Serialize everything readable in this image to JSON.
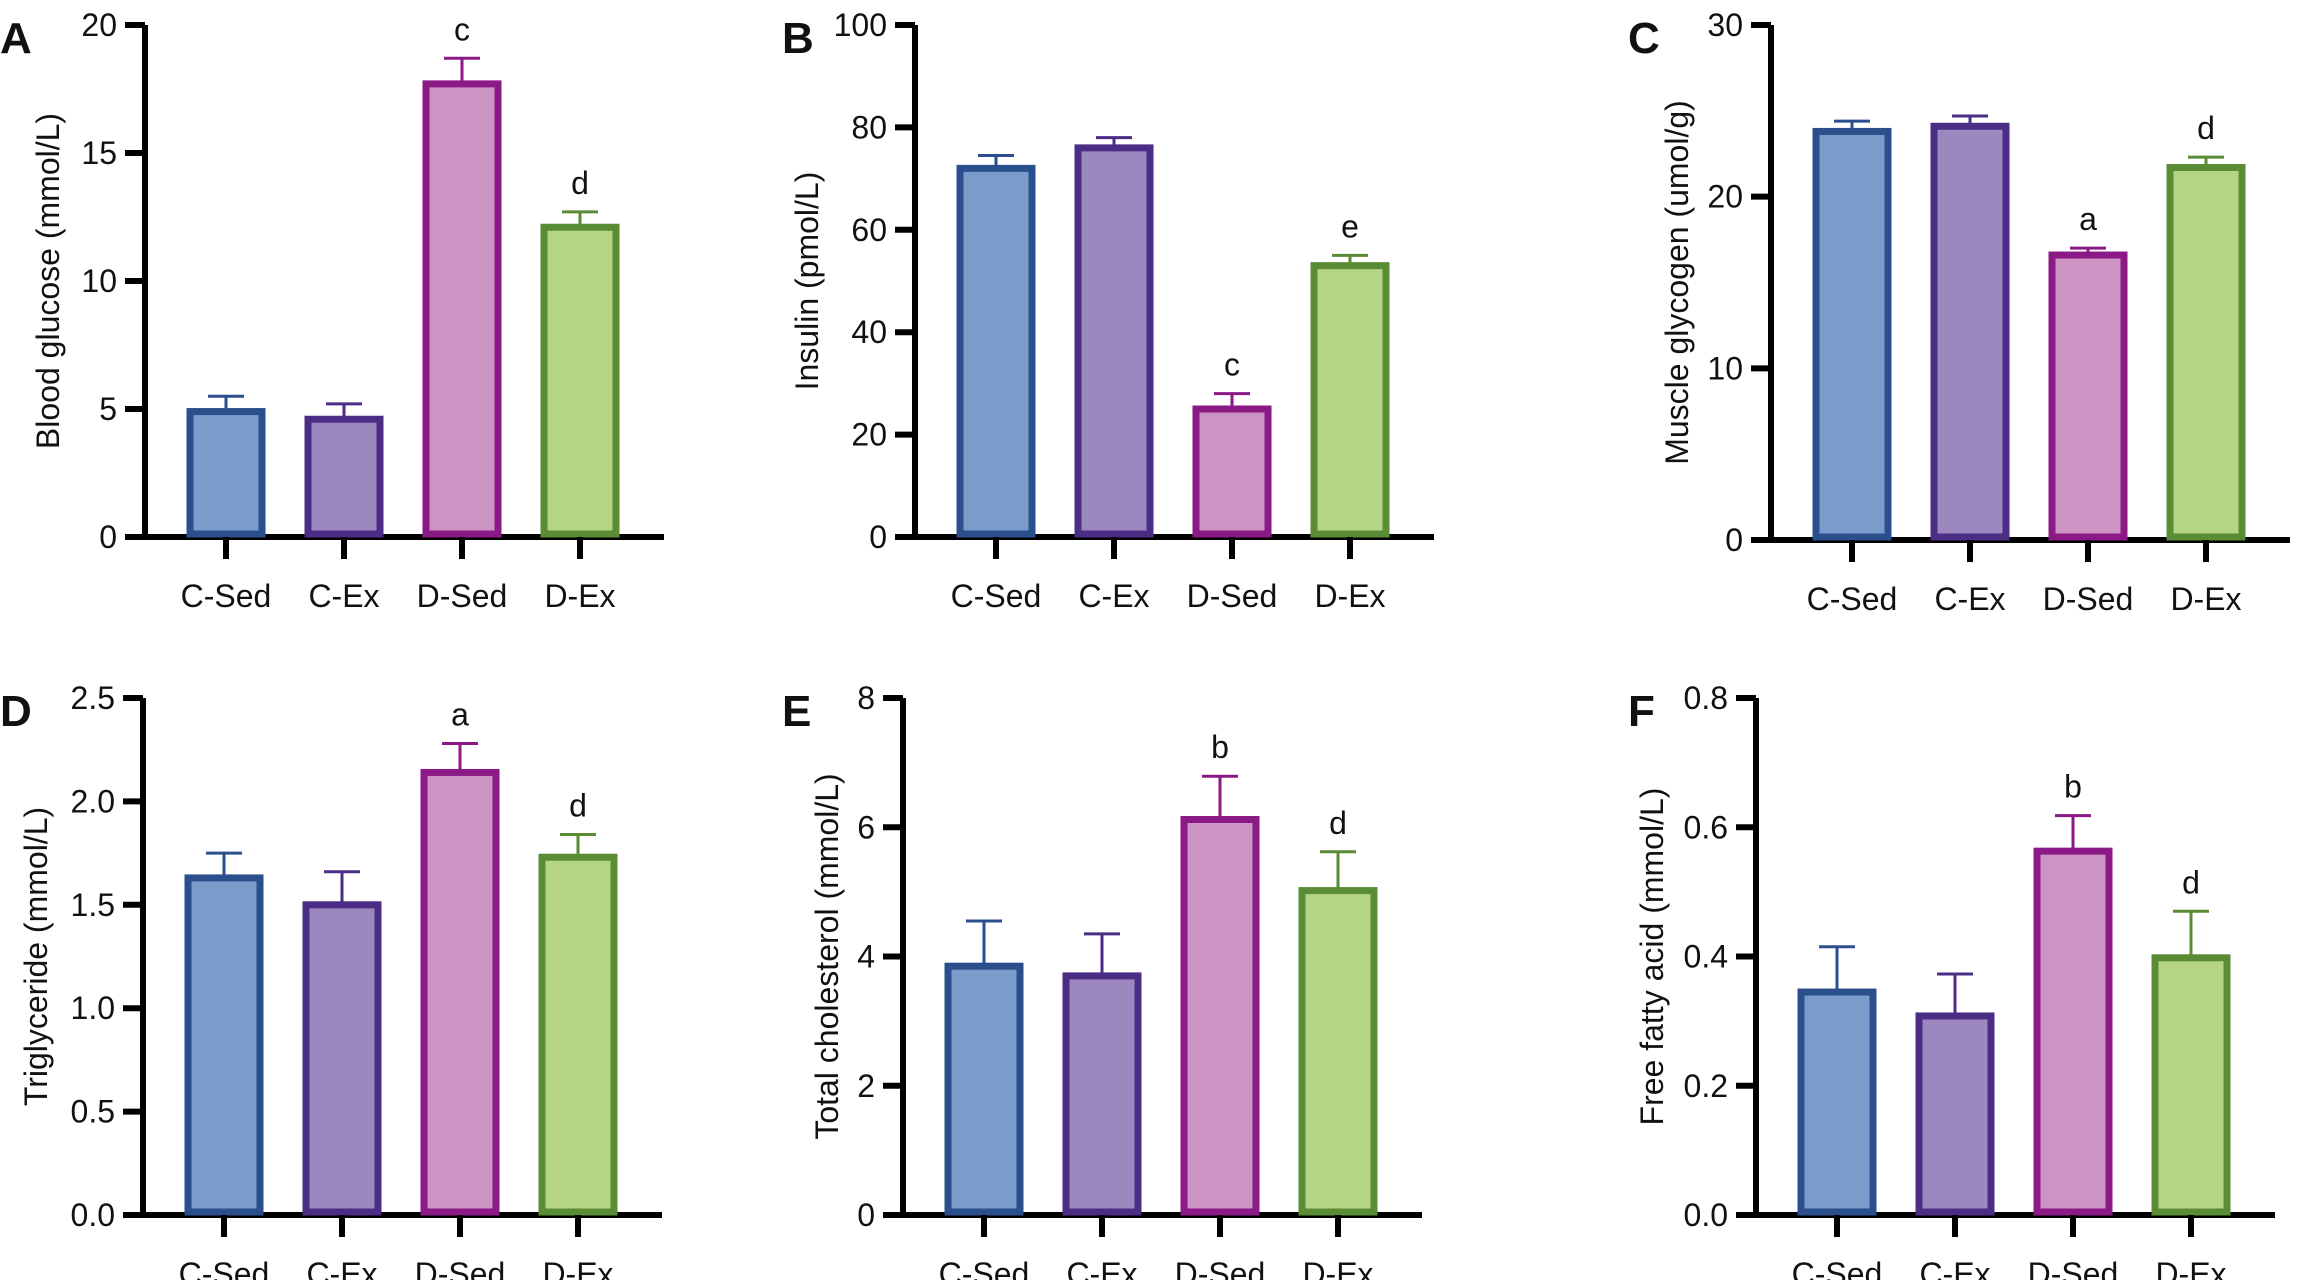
{
  "chart_data": [
    {
      "panel": "A",
      "type": "bar",
      "categories": [
        "C-Sed",
        "C-Ex",
        "D-Sed",
        "D-Ex"
      ],
      "values": [
        4.9,
        4.6,
        17.7,
        12.1
      ],
      "errors": [
        0.6,
        0.6,
        1.0,
        0.6
      ],
      "annotations": [
        "",
        "",
        "c",
        "d"
      ],
      "ylabel": "Blood glucose (mmol/L)",
      "ylim": [
        0,
        20
      ],
      "yticks": [
        "0",
        "5",
        "10",
        "15",
        "20"
      ]
    },
    {
      "panel": "B",
      "type": "bar",
      "categories": [
        "C-Sed",
        "C-Ex",
        "D-Sed",
        "D-Ex"
      ],
      "values": [
        72,
        76,
        25,
        53
      ],
      "errors": [
        2.5,
        2,
        3,
        2
      ],
      "annotations": [
        "",
        "",
        "c",
        "e"
      ],
      "ylabel": "Insulin (pmol/L)",
      "ylim": [
        0,
        100
      ],
      "yticks": [
        "0",
        "20",
        "40",
        "60",
        "80",
        "100"
      ]
    },
    {
      "panel": "C",
      "type": "bar",
      "categories": [
        "C-Sed",
        "C-Ex",
        "D-Sed",
        "D-Ex"
      ],
      "values": [
        23.8,
        24.1,
        16.6,
        21.7
      ],
      "errors": [
        0.6,
        0.6,
        0.4,
        0.6
      ],
      "annotations": [
        "",
        "",
        "a",
        "d"
      ],
      "ylabel": "Muscle glycogen (umol/g)",
      "ylim": [
        0,
        30
      ],
      "yticks": [
        "0",
        "10",
        "20",
        "30"
      ]
    },
    {
      "panel": "D",
      "type": "bar",
      "categories": [
        "C-Sed",
        "C-Ex",
        "D-Sed",
        "D-Ex"
      ],
      "values": [
        1.63,
        1.5,
        2.14,
        1.73
      ],
      "errors": [
        0.12,
        0.16,
        0.14,
        0.11
      ],
      "annotations": [
        "",
        "",
        "a",
        "d"
      ],
      "ylabel": "Triglyceride (mmol/L)",
      "ylim": [
        0,
        2.5
      ],
      "yticks": [
        "0.0",
        "0.5",
        "1.0",
        "1.5",
        "2.0",
        "2.5"
      ]
    },
    {
      "panel": "E",
      "type": "bar",
      "categories": [
        "C-Sed",
        "C-Ex",
        "D-Sed",
        "D-Ex"
      ],
      "values": [
        3.85,
        3.7,
        6.12,
        5.02
      ],
      "errors": [
        0.7,
        0.65,
        0.67,
        0.6
      ],
      "annotations": [
        "",
        "",
        "b",
        "d"
      ],
      "ylabel": "Total cholesterol (mmol/L)",
      "ylim": [
        0,
        8
      ],
      "yticks": [
        "0",
        "2",
        "4",
        "6",
        "8"
      ]
    },
    {
      "panel": "F",
      "type": "bar",
      "categories": [
        "C-Sed",
        "C-Ex",
        "D-Sed",
        "D-Ex"
      ],
      "values": [
        0.345,
        0.308,
        0.563,
        0.398
      ],
      "errors": [
        0.07,
        0.065,
        0.055,
        0.072
      ],
      "annotations": [
        "",
        "",
        "b",
        "d"
      ],
      "ylabel": "Free fatty acid (mmol/L)",
      "ylim": [
        0,
        0.8
      ],
      "yticks": [
        "0.0",
        "0.2",
        "0.4",
        "0.6",
        "0.8"
      ]
    }
  ],
  "colors": {
    "fills": [
      "#7b9bcb",
      "#9b88be",
      "#cb94c3",
      "#b5d585"
    ],
    "strokes": [
      "#2b4f8c",
      "#4b2d85",
      "#8b1a87",
      "#5a8c35"
    ]
  }
}
